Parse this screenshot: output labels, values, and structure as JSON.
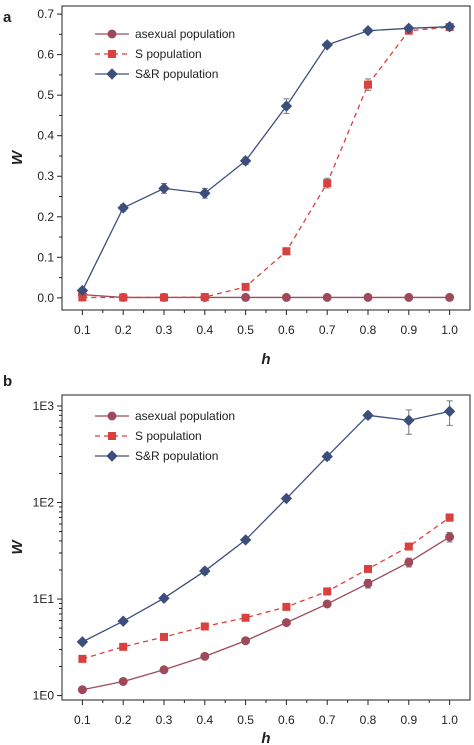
{
  "chart_data": [
    {
      "panel": "a",
      "type": "line",
      "xlabel": "h",
      "ylabel": "W",
      "y_scale": "linear",
      "xlim": [
        0.05,
        1.05
      ],
      "ylim": [
        -0.03,
        0.72
      ],
      "x_ticks": [
        0.1,
        0.2,
        0.3,
        0.4,
        0.5,
        0.6,
        0.7,
        0.8,
        0.9,
        1.0
      ],
      "x_tick_labels": [
        "0.1",
        "0.2",
        "0.3",
        "0.4",
        "0.5",
        "0.6",
        "0.7",
        "0.8",
        "0.9",
        "1.0"
      ],
      "y_ticks": [
        0.0,
        0.1,
        0.2,
        0.3,
        0.4,
        0.5,
        0.6,
        0.7
      ],
      "y_tick_labels": [
        "0.0",
        "0.1",
        "0.2",
        "0.3",
        "0.4",
        "0.5",
        "0.6",
        "0.7"
      ],
      "legend_position": "top-left",
      "x": [
        0.1,
        0.2,
        0.3,
        0.4,
        0.5,
        0.6,
        0.7,
        0.8,
        0.9,
        1.0
      ],
      "series": [
        {
          "name": "asexual population",
          "marker": "circle",
          "line": "solid",
          "color": "#9e4a5a",
          "values": [
            0.008,
            0.001,
            0.001,
            0.001,
            0.001,
            0.001,
            0.001,
            0.001,
            0.001,
            0.001
          ],
          "errors": [
            0.003,
            0.001,
            0.001,
            0.001,
            0.001,
            0.001,
            0.001,
            0.001,
            0.001,
            0.001
          ]
        },
        {
          "name": "S population",
          "marker": "square",
          "line": "dashed",
          "color": "#d9413f",
          "values": [
            0.001,
            0.001,
            0.001,
            0.002,
            0.027,
            0.115,
            0.283,
            0.526,
            0.659,
            0.668
          ],
          "errors": [
            0.001,
            0.001,
            0.001,
            0.001,
            0.004,
            0.005,
            0.012,
            0.014,
            0.006,
            0.004
          ]
        },
        {
          "name": "S&R population",
          "marker": "diamond",
          "line": "solid",
          "color": "#3c4f7c",
          "values": [
            0.018,
            0.222,
            0.27,
            0.258,
            0.338,
            0.473,
            0.624,
            0.659,
            0.665,
            0.669
          ],
          "errors": [
            0.003,
            0.008,
            0.012,
            0.012,
            0.009,
            0.018,
            0.007,
            0.004,
            0.004,
            0.004
          ]
        }
      ]
    },
    {
      "panel": "b",
      "type": "line",
      "xlabel": "h",
      "ylabel": "W",
      "y_scale": "log",
      "xlim": [
        0.05,
        1.05
      ],
      "ylim": [
        0.9,
        1300
      ],
      "x_ticks": [
        0.1,
        0.2,
        0.3,
        0.4,
        0.5,
        0.6,
        0.7,
        0.8,
        0.9,
        1.0
      ],
      "x_tick_labels": [
        "0.1",
        "0.2",
        "0.3",
        "0.4",
        "0.5",
        "0.6",
        "0.7",
        "0.8",
        "0.9",
        "1.0"
      ],
      "y_ticks": [
        1,
        10,
        100,
        1000
      ],
      "y_tick_labels": [
        "1E0",
        "1E1",
        "1E2",
        "1E3"
      ],
      "legend_position": "top-left",
      "x": [
        0.1,
        0.2,
        0.3,
        0.4,
        0.5,
        0.6,
        0.7,
        0.8,
        0.9,
        1.0
      ],
      "series": [
        {
          "name": "asexual population",
          "marker": "circle",
          "line": "solid",
          "color": "#9e4a5a",
          "values": [
            1.15,
            1.4,
            1.85,
            2.55,
            3.7,
            5.7,
            8.9,
            14.5,
            24,
            44
          ],
          "errors": [
            0.05,
            0.05,
            0.07,
            0.1,
            0.15,
            0.25,
            0.5,
            1.5,
            2.5,
            5
          ]
        },
        {
          "name": "S population",
          "marker": "square",
          "line": "dashed",
          "color": "#d9413f",
          "values": [
            2.4,
            3.2,
            4.05,
            5.2,
            6.4,
            8.3,
            12,
            20.5,
            35,
            70
          ],
          "errors": [
            0.1,
            0.1,
            0.15,
            0.2,
            0.25,
            0.3,
            0.5,
            1.0,
            2.5,
            6
          ]
        },
        {
          "name": "S&R population",
          "marker": "diamond",
          "line": "solid",
          "color": "#3c4f7c",
          "values": [
            3.6,
            5.9,
            10.2,
            19.5,
            41,
            110,
            300,
            800,
            710,
            880
          ],
          "errors": [
            0.2,
            0.3,
            0.5,
            1.5,
            2,
            5,
            25,
            60,
            200,
            250
          ]
        }
      ]
    }
  ]
}
